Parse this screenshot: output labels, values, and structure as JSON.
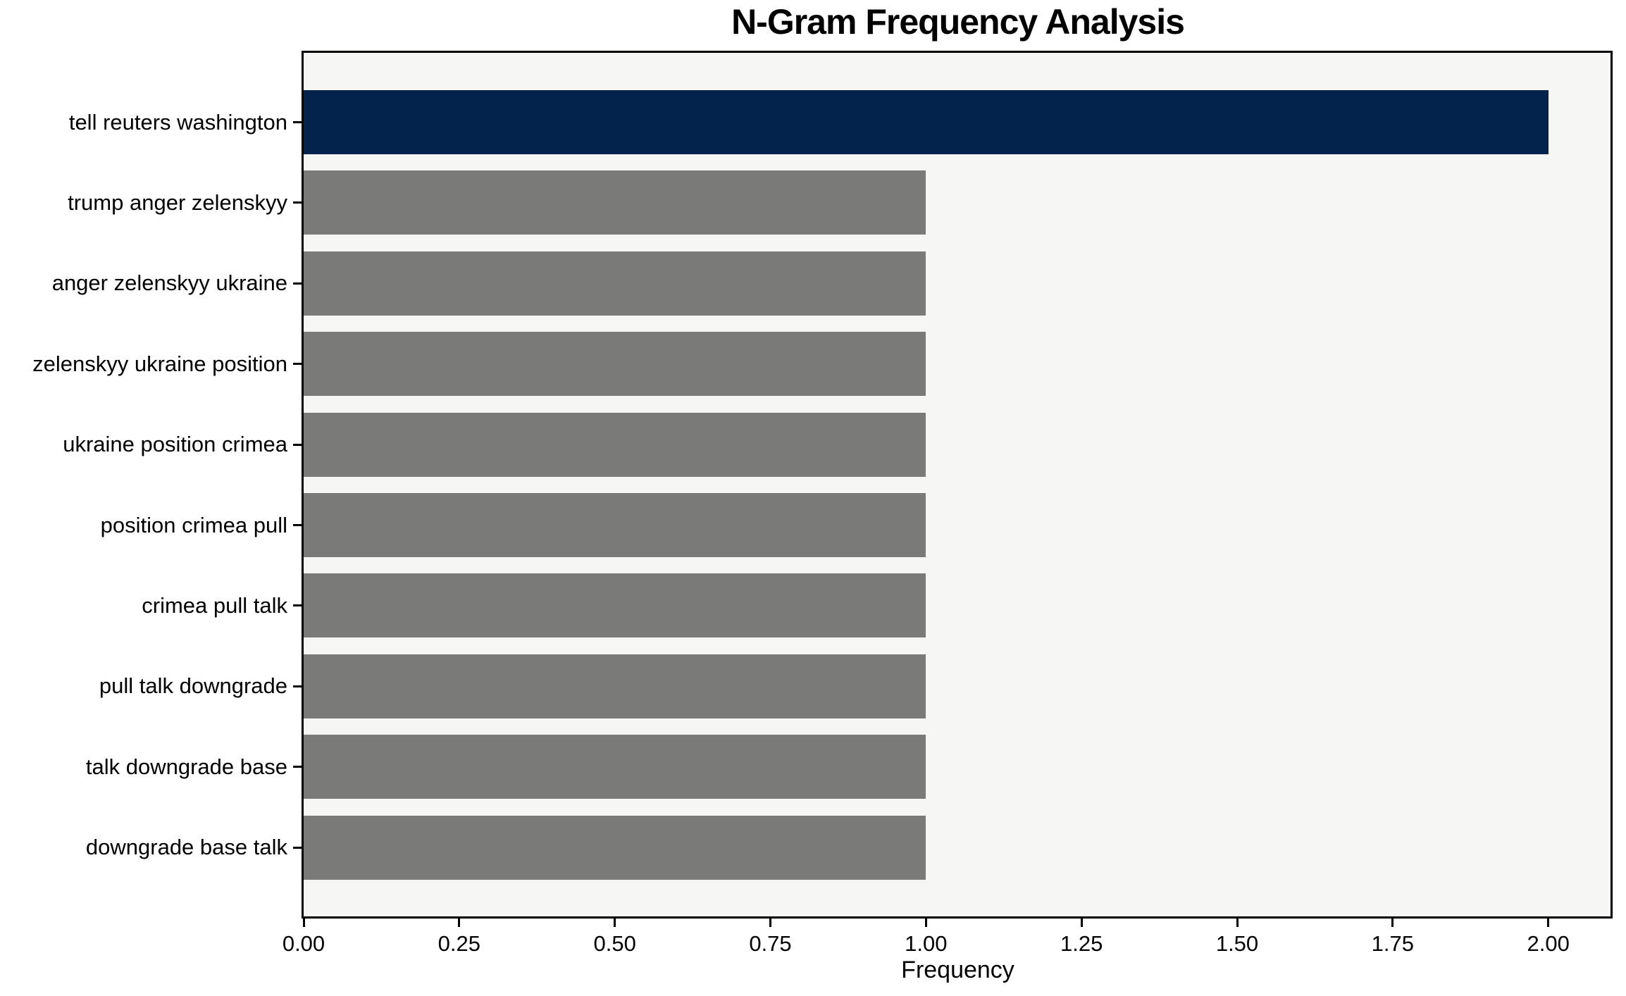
{
  "chart_data": {
    "type": "bar",
    "orientation": "horizontal",
    "title": "N-Gram Frequency Analysis",
    "xlabel": "Frequency",
    "ylabel": "",
    "categories": [
      "tell reuters washington",
      "trump anger zelenskyy",
      "anger zelenskyy ukraine",
      "zelenskyy ukraine position",
      "ukraine position crimea",
      "position crimea pull",
      "crimea pull talk",
      "pull talk downgrade",
      "talk downgrade base",
      "downgrade base talk"
    ],
    "values": [
      2,
      1,
      1,
      1,
      1,
      1,
      1,
      1,
      1,
      1
    ],
    "xlim": [
      0,
      2.1
    ],
    "xtick_values": [
      0,
      0.25,
      0.5,
      0.75,
      1.0,
      1.25,
      1.5,
      1.75,
      2.0
    ],
    "xtick_labels": [
      "0.00",
      "0.25",
      "0.50",
      "0.75",
      "1.00",
      "1.25",
      "1.50",
      "1.75",
      "2.00"
    ],
    "grid": false,
    "legend": null,
    "colors": {
      "highlight_bar": "#03234c",
      "default_bar": "#7a7a78",
      "plot_background": "#f6f6f5",
      "figure_background": "#ffffff",
      "text": "#000000"
    },
    "highlight_index": 0
  }
}
